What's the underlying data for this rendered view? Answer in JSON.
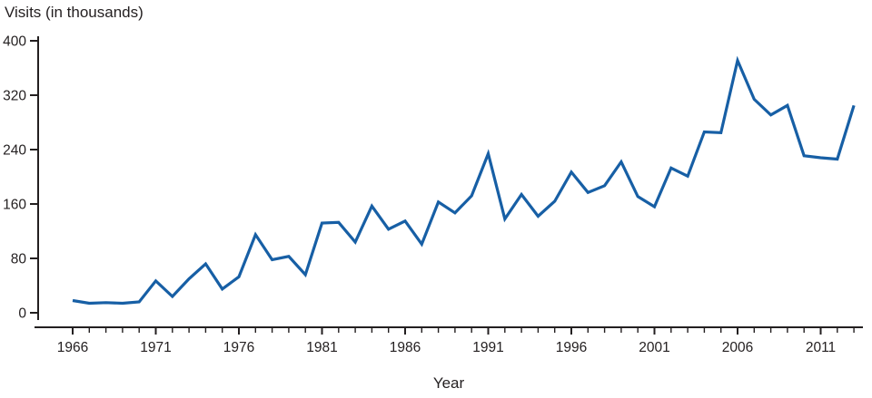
{
  "chart_data": {
    "type": "line",
    "title": "Visits (in thousands)",
    "xlabel": "Year",
    "ylabel": "Visits (in thousands)",
    "x": [
      1966,
      1967,
      1968,
      1969,
      1970,
      1971,
      1972,
      1973,
      1974,
      1975,
      1976,
      1977,
      1978,
      1979,
      1980,
      1981,
      1982,
      1983,
      1984,
      1985,
      1986,
      1987,
      1988,
      1989,
      1990,
      1991,
      1992,
      1993,
      1994,
      1995,
      1996,
      1997,
      1998,
      1999,
      2000,
      2001,
      2002,
      2003,
      2004,
      2005,
      2006,
      2007,
      2008,
      2009,
      2010,
      2011,
      2012,
      2013
    ],
    "values": [
      18,
      14,
      15,
      14,
      16,
      47,
      24,
      50,
      72,
      35,
      53,
      115,
      78,
      83,
      56,
      132,
      133,
      104,
      157,
      123,
      135,
      101,
      163,
      147,
      172,
      234,
      138,
      174,
      142,
      164,
      207,
      177,
      187,
      222,
      171,
      156,
      213,
      201,
      266,
      265,
      371,
      314,
      291,
      305,
      231,
      228,
      226,
      305
    ],
    "x_ticks": [
      1966,
      1971,
      1976,
      1981,
      1986,
      1991,
      1996,
      2001,
      2006,
      2011
    ],
    "y_ticks": [
      0,
      80,
      160,
      240,
      320,
      400
    ],
    "ylim": [
      0,
      400
    ],
    "xlim": [
      1964,
      2014
    ],
    "grid": false,
    "legend": "none",
    "line_color": "#175fa5",
    "axis_color": "#231f20",
    "text_color": "#231f20"
  }
}
